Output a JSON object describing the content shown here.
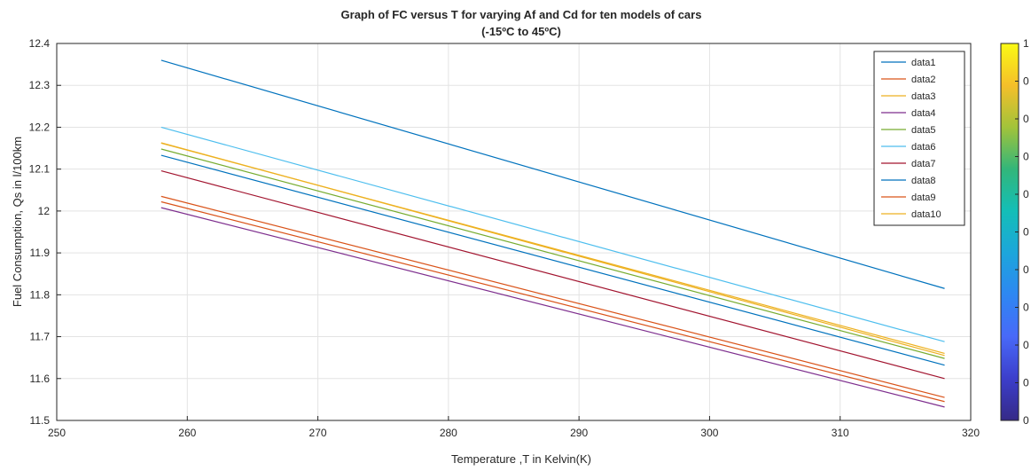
{
  "chart_data": {
    "type": "line",
    "title": "Graph of FC versus T for varying Af and Cd for ten models of cars",
    "subtitle": "(-15ºC to 45ºC)",
    "xlabel": "Temperature ,T in Kelvin(K)",
    "ylabel": "Fuel Consumption, Qs in l/100km",
    "xlim": [
      250,
      320
    ],
    "ylim": [
      11.5,
      12.4
    ],
    "xticks": [
      250,
      260,
      270,
      280,
      290,
      300,
      310,
      320
    ],
    "yticks": [
      11.5,
      11.6,
      11.7,
      11.8,
      11.9,
      12,
      12.1,
      12.2,
      12.3,
      12.4
    ],
    "grid": true,
    "legend_position": "top-right",
    "x": [
      258,
      318
    ],
    "series": [
      {
        "name": "data1",
        "values": [
          12.36,
          11.815
        ],
        "color": "#0072BD"
      },
      {
        "name": "data2",
        "values": [
          12.035,
          11.555
        ],
        "color": "#D95319"
      },
      {
        "name": "data3",
        "values": [
          12.162,
          11.66
        ],
        "color": "#EDB120"
      },
      {
        "name": "data4",
        "values": [
          12.008,
          11.532
        ],
        "color": "#7E2F8E"
      },
      {
        "name": "data5",
        "values": [
          12.148,
          11.648
        ],
        "color": "#77AC30"
      },
      {
        "name": "data6",
        "values": [
          12.2,
          11.688
        ],
        "color": "#4DBEEE"
      },
      {
        "name": "data7",
        "values": [
          12.096,
          11.6
        ],
        "color": "#A2142F"
      },
      {
        "name": "data8",
        "values": [
          12.133,
          11.632
        ],
        "color": "#0072BD"
      },
      {
        "name": "data9",
        "values": [
          12.022,
          11.545
        ],
        "color": "#D95319"
      },
      {
        "name": "data10",
        "values": [
          12.163,
          11.655
        ],
        "color": "#EDB120"
      }
    ],
    "colorbar": {
      "ticks": [
        "1",
        "0",
        "0",
        "0",
        "0",
        "0",
        "0",
        "0",
        "0",
        "0",
        "0"
      ],
      "colors": [
        "#FAFA14",
        "#F5BF2A",
        "#A2C33A",
        "#32B67A",
        "#13BEB7",
        "#1CA6DB",
        "#2E87F2",
        "#4869F8",
        "#3C3ECB",
        "#352A87"
      ]
    }
  }
}
